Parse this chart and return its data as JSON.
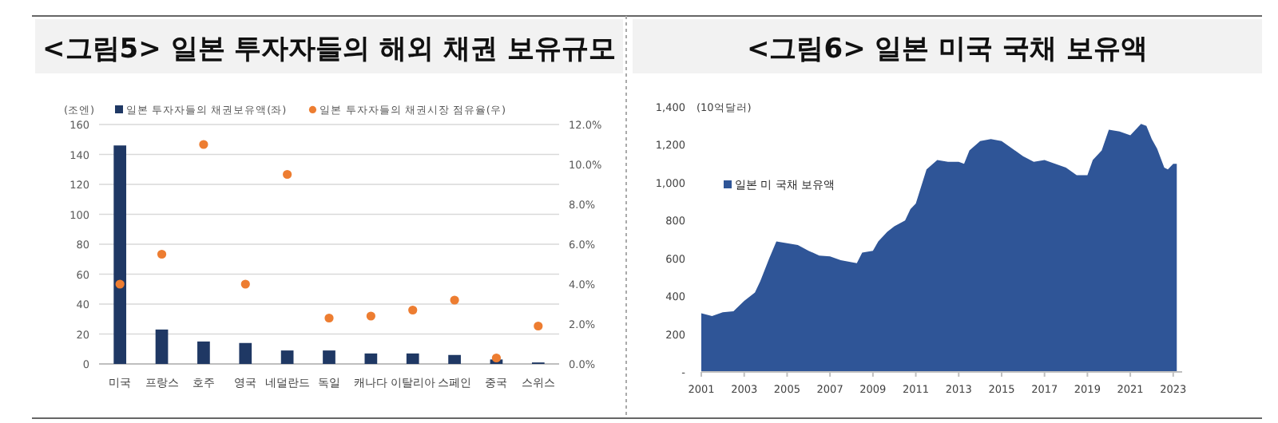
{
  "chart_data": [
    {
      "type": "bar",
      "title": "<그림5> 일본 투자자들의 해외 채권 보유규모",
      "ylabel": "(조엔)",
      "categories": [
        "미국",
        "프랑스",
        "호주",
        "영국",
        "네덜란드",
        "독일",
        "캐나다",
        "이탈리아",
        "스페인",
        "중국",
        "스위스"
      ],
      "series": [
        {
          "name": "일본 투자자들의 채권보유액(좌)",
          "type": "bar",
          "color": "#1f3864",
          "values": [
            146,
            23,
            15,
            14,
            9,
            9,
            7,
            7,
            6,
            3,
            1
          ]
        },
        {
          "name": "일본 투자자들의 채권시장 점유율(우)",
          "type": "scatter",
          "axis": "y2",
          "color": "#ed7d31",
          "values": [
            4.0,
            5.5,
            11.0,
            4.0,
            9.5,
            2.3,
            2.4,
            2.7,
            3.2,
            0.3,
            1.9
          ]
        }
      ],
      "ylim": [
        0,
        160
      ],
      "yticks": [
        0,
        20,
        40,
        60,
        80,
        100,
        120,
        140,
        160
      ],
      "y2lim": [
        0,
        12
      ],
      "y2ticks": [
        {
          "value": 0,
          "label": "0.0%"
        },
        {
          "value": 2,
          "label": "2.0%"
        },
        {
          "value": 4,
          "label": "4.0%"
        },
        {
          "value": 6,
          "label": "6.0%"
        },
        {
          "value": 8,
          "label": "8.0%"
        },
        {
          "value": 10,
          "label": "10.0%"
        },
        {
          "value": 12,
          "label": "12.0%"
        }
      ],
      "grid": "y",
      "legend": "top",
      "marker": "circle"
    },
    {
      "type": "area",
      "title": "<그림6> 일본 미국 국채 보유액",
      "ylabel": "(10억달러)",
      "x": [
        "2001-01",
        "2001-07",
        "2002-01",
        "2002-07",
        "2003-01",
        "2003-07",
        "2003-10",
        "2004-03",
        "2004-07",
        "2005-01",
        "2005-07",
        "2006-01",
        "2006-07",
        "2007-01",
        "2007-07",
        "2008-01",
        "2008-04",
        "2008-07",
        "2009-01",
        "2009-04",
        "2009-09",
        "2010-01",
        "2010-07",
        "2010-10",
        "2011-01",
        "2011-07",
        "2012-01",
        "2012-07",
        "2013-01",
        "2013-04",
        "2013-07",
        "2014-01",
        "2014-07",
        "2015-01",
        "2015-07",
        "2016-01",
        "2016-07",
        "2017-01",
        "2017-07",
        "2018-01",
        "2018-07",
        "2019-01",
        "2019-04",
        "2019-09",
        "2020-01",
        "2020-07",
        "2021-01",
        "2021-07",
        "2021-10",
        "2022-01",
        "2022-04",
        "2022-08",
        "2022-10",
        "2023-01",
        "2023-03"
      ],
      "series": [
        {
          "name": "일본 미 국채 보유액",
          "color": "#2f5597",
          "values": [
            310,
            295,
            315,
            320,
            375,
            420,
            480,
            600,
            690,
            680,
            670,
            640,
            615,
            610,
            590,
            580,
            575,
            630,
            640,
            690,
            740,
            770,
            800,
            860,
            890,
            1070,
            1120,
            1110,
            1110,
            1100,
            1170,
            1220,
            1230,
            1220,
            1180,
            1140,
            1110,
            1120,
            1100,
            1080,
            1040,
            1040,
            1120,
            1170,
            1280,
            1270,
            1250,
            1310,
            1300,
            1230,
            1180,
            1080,
            1070,
            1100,
            1100
          ]
        }
      ],
      "xlim": [
        "2001-01",
        "2023-06"
      ],
      "xticks": [
        "2001",
        "2003",
        "2005",
        "2007",
        "2009",
        "2011",
        "2013",
        "2015",
        "2017",
        "2019",
        "2021",
        "2023"
      ],
      "ylim": [
        0,
        1400
      ],
      "yticks": [
        {
          "value": 0,
          "label": "-"
        },
        {
          "value": 200,
          "label": "200"
        },
        {
          "value": 400,
          "label": "400"
        },
        {
          "value": 600,
          "label": "600"
        },
        {
          "value": 800,
          "label": "800"
        },
        {
          "value": 1000,
          "label": "1,000"
        },
        {
          "value": 1200,
          "label": "1,200"
        },
        {
          "value": 1400,
          "label": "1,400"
        }
      ],
      "grid": false,
      "legend": "top left"
    }
  ]
}
